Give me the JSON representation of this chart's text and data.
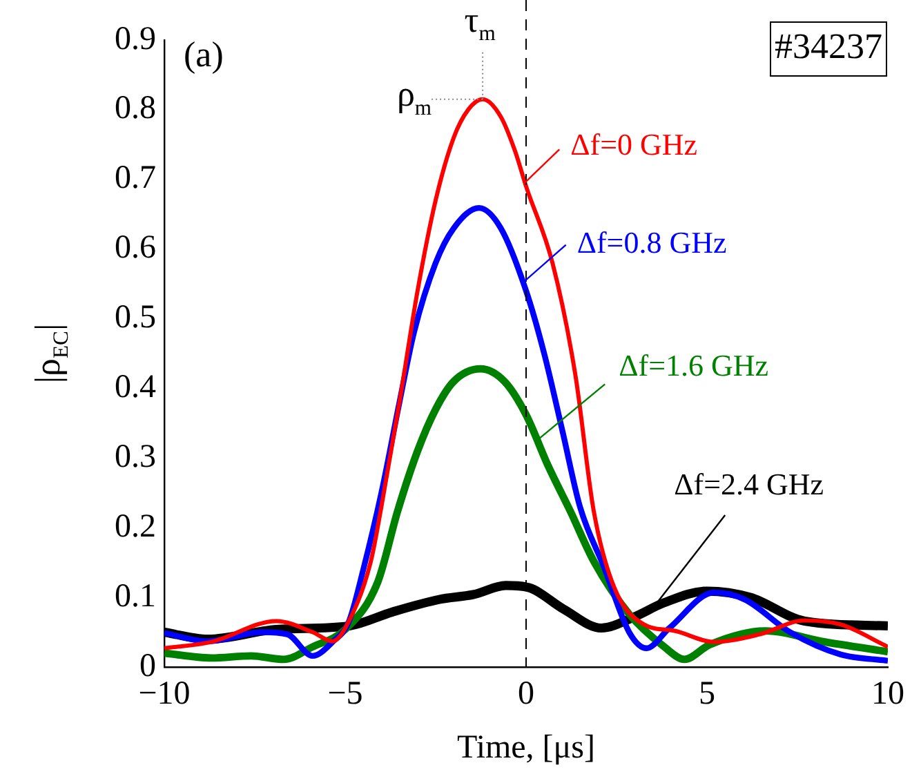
{
  "chart_data": {
    "type": "line",
    "xlabel": "Time, [μs]",
    "ylabel": "|ρ$_{EC}$|",
    "xlim": [
      -10,
      10
    ],
    "xticks": [
      {
        "value": -10,
        "label": "−10"
      },
      {
        "value": -5,
        "label": "−5"
      },
      0,
      5,
      10
    ],
    "ylim": [
      0,
      0.9
    ],
    "yticks": [
      0,
      0.1,
      0.2,
      0.3,
      0.4,
      0.5,
      0.6,
      0.7,
      0.8,
      0.9
    ],
    "marker": "none",
    "series": [
      {
        "name": "Δf=0 GHz",
        "color": "#ff0000",
        "x": [
          -10,
          -8.7,
          -6.9,
          -5.9,
          -5.35,
          -5,
          -4.3,
          -4,
          -3.5,
          -3,
          -2.5,
          -2,
          -1.6,
          -1.2,
          -0.7,
          -0.3,
          0,
          0.73,
          1.36,
          1.87,
          2.43,
          3.26,
          4.1,
          5.2,
          6.46,
          7.7,
          8.7,
          10
        ],
        "values": [
          0.027,
          0.036,
          0.066,
          0.05,
          0.037,
          0.056,
          0.15,
          0.23,
          0.38,
          0.54,
          0.67,
          0.76,
          0.8,
          0.815,
          0.79,
          0.74,
          0.69,
          0.58,
          0.42,
          0.224,
          0.115,
          0.061,
          0.052,
          0.036,
          0.047,
          0.067,
          0.061,
          0.029
        ]
      },
      {
        "name": "Δf=0.8 GHz",
        "color": "#0000ff",
        "x": [
          -10,
          -8.8,
          -7.3,
          -6.6,
          -5.9,
          -5.35,
          -4.9,
          -4.5,
          -4,
          -3.5,
          -3.1,
          -2.5,
          -2,
          -1.3,
          -0.7,
          0,
          0.5,
          1,
          1.49,
          2.15,
          2.85,
          3.33,
          3.96,
          5.2,
          6.04,
          7.3,
          8.7,
          10
        ],
        "values": [
          0.049,
          0.037,
          0.05,
          0.047,
          0.016,
          0.036,
          0.065,
          0.14,
          0.25,
          0.38,
          0.48,
          0.58,
          0.63,
          0.659,
          0.63,
          0.54,
          0.45,
          0.34,
          0.23,
          0.144,
          0.05,
          0.027,
          0.056,
          0.107,
          0.097,
          0.05,
          0.018,
          0.009
        ]
      },
      {
        "name": "Δf=1.6 GHz",
        "color": "#008000",
        "x": [
          -10,
          -8.7,
          -7.6,
          -6.7,
          -5.9,
          -5,
          -4.1,
          -3.55,
          -3,
          -2.5,
          -2,
          -1.26,
          -0.6,
          0,
          0.6,
          1.22,
          1.88,
          2.85,
          3.82,
          4.38,
          5.07,
          6.6,
          8.26,
          10
        ],
        "values": [
          0.02,
          0.013,
          0.016,
          0.011,
          0.029,
          0.054,
          0.122,
          0.224,
          0.31,
          0.37,
          0.41,
          0.428,
          0.41,
          0.362,
          0.29,
          0.224,
          0.151,
          0.076,
          0.029,
          0.011,
          0.032,
          0.052,
          0.036,
          0.022
        ]
      },
      {
        "name": "Δf=2.4 GHz",
        "color": "#000000",
        "x": [
          -10,
          -8.8,
          -6.9,
          -4.9,
          -3.7,
          -2.4,
          -1.46,
          -0.56,
          0.07,
          1.04,
          2.08,
          2.99,
          3.8,
          5,
          6.2,
          7.7,
          10
        ],
        "values": [
          0.05,
          0.04,
          0.054,
          0.059,
          0.079,
          0.097,
          0.104,
          0.117,
          0.114,
          0.083,
          0.056,
          0.072,
          0.092,
          0.109,
          0.1,
          0.066,
          0.059
        ]
      }
    ],
    "ref_lines": [
      {
        "axis": "x",
        "value": 0,
        "color": "#000000",
        "line_style": "dashed"
      }
    ],
    "annotations": [
      "(a)",
      "#34237",
      {
        "text": "τ$_{m}$",
        "x": -1.2,
        "y": 0.815
      },
      {
        "text": "ρ$_{m}$",
        "x": -1.2,
        "y": 0.815
      }
    ]
  }
}
